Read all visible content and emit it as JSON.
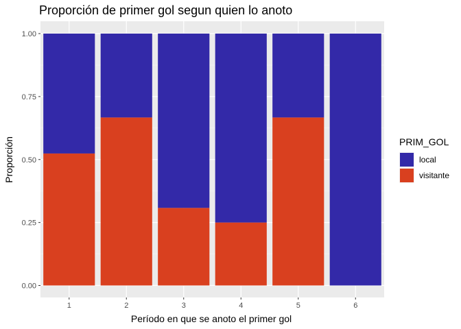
{
  "chart_data": {
    "type": "bar",
    "stacked": true,
    "title": "Proporción de primer gol segun quien lo anoto",
    "xlabel": "Período en que se anoto el primer gol",
    "ylabel": "Proporción",
    "categories": [
      "1",
      "2",
      "3",
      "4",
      "5",
      "6"
    ],
    "ylim": [
      0,
      1
    ],
    "y_ticks": [
      0.0,
      0.25,
      0.5,
      0.75,
      1.0
    ],
    "y_tick_labels": [
      "0.00",
      "0.25",
      "0.50",
      "0.75",
      "1.00"
    ],
    "grid": true,
    "legend": {
      "title": "PRIM_GOL",
      "placement": "right"
    },
    "series": [
      {
        "name": "local",
        "color": "#3329A8",
        "values": [
          0.476,
          0.333,
          0.692,
          0.75,
          0.333,
          1.0
        ]
      },
      {
        "name": "visitante",
        "color": "#D9401F",
        "values": [
          0.524,
          0.667,
          0.308,
          0.25,
          0.667,
          0.0
        ]
      }
    ]
  }
}
